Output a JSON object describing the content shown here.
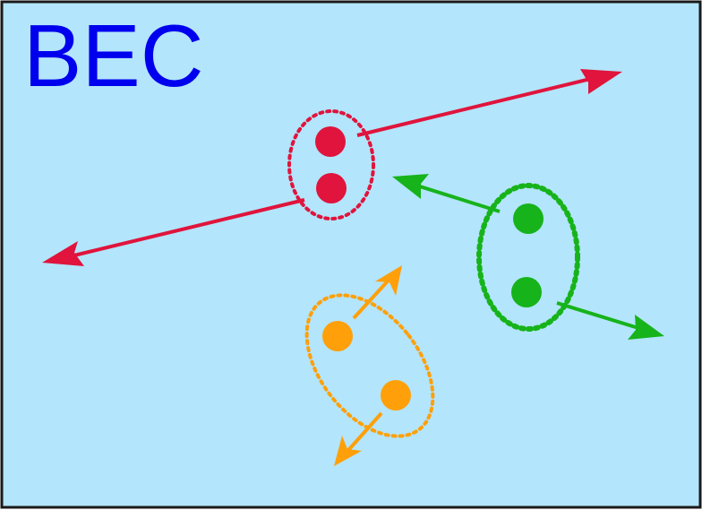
{
  "diagram": {
    "title": "BEC",
    "colors": {
      "background": "#b3e5fc",
      "border": "#1a1a1a",
      "title": "#0000ee",
      "pair_red": "#e0143c",
      "pair_green": "#17b31a",
      "pair_orange": "#ffa00a"
    },
    "pairs": [
      {
        "name": "red-pair",
        "color_key": "pair_red",
        "particles": 2,
        "arrows": 2
      },
      {
        "name": "green-pair",
        "color_key": "pair_green",
        "particles": 2,
        "arrows": 2
      },
      {
        "name": "orange-pair",
        "color_key": "pair_orange",
        "particles": 2,
        "arrows": 2
      }
    ]
  }
}
